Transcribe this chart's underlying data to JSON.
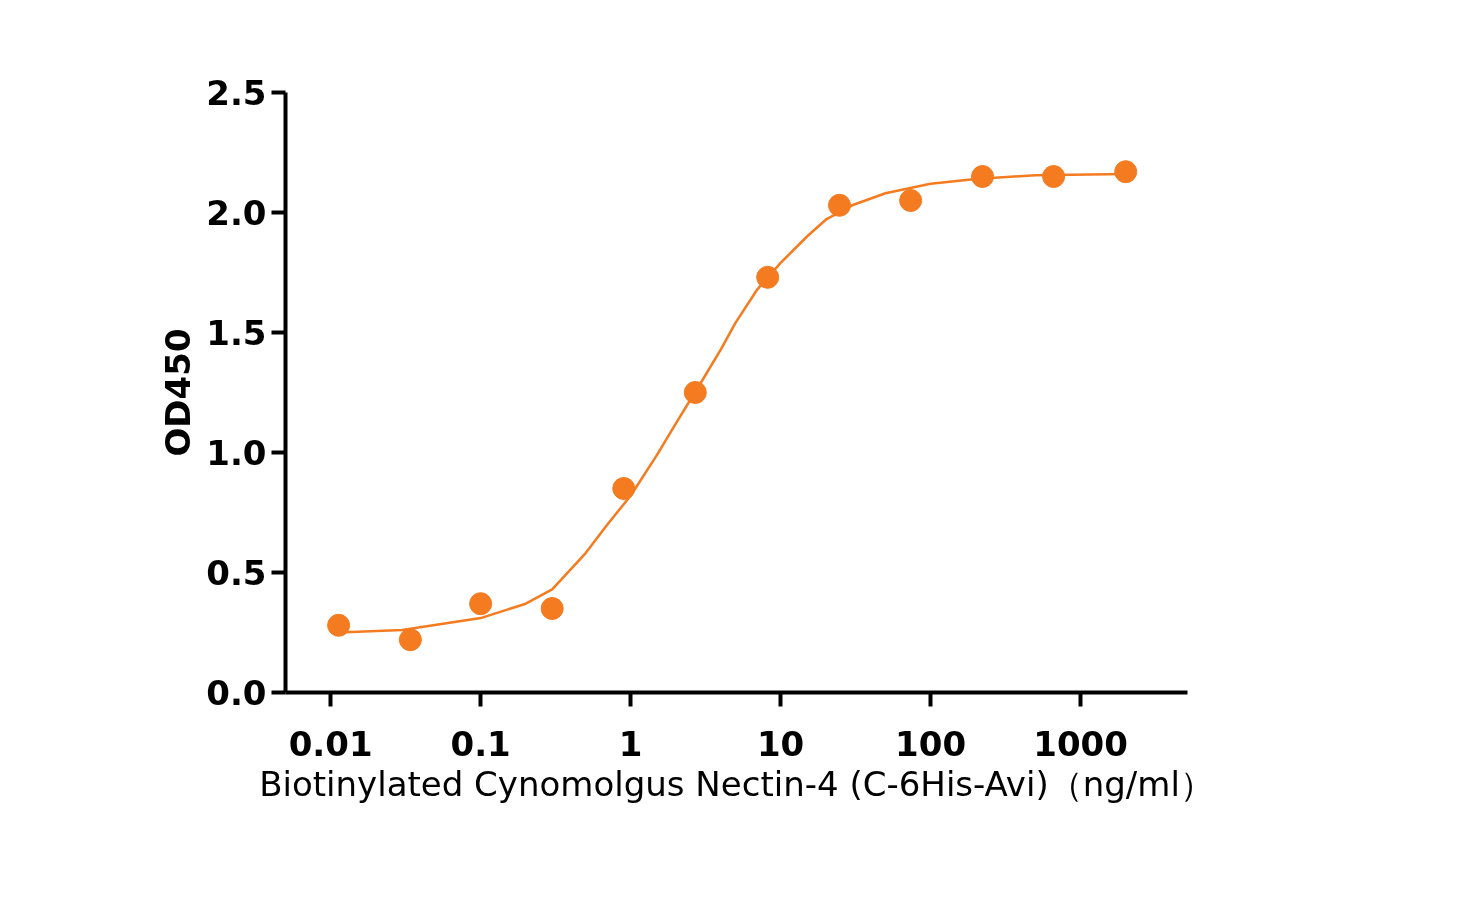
{
  "chart_data": {
    "type": "scatter",
    "xlabel": "Biotinylated Cynomolgus Nectin-4 (C-6His-Avi)（ng/ml）",
    "ylabel": "OD450",
    "log": "x",
    "xlim": [
      0.005,
      5164
    ],
    "ylim": [
      0,
      2.5
    ],
    "xticks": [
      0.01,
      0.1,
      1,
      10,
      100,
      1000
    ],
    "yticks": [
      {
        "value": 0,
        "label": "0.0"
      },
      {
        "value": 0.5,
        "label": "0.5"
      },
      {
        "value": 1,
        "label": "1.0"
      },
      {
        "value": 1.5,
        "label": "1.5"
      },
      {
        "value": 2,
        "label": "2.0"
      },
      {
        "value": 2.5,
        "label": "2.5"
      }
    ],
    "grid": false,
    "series": [
      {
        "marker": "circle",
        "color": "#f47b20",
        "x": [
          0.0113,
          0.034,
          0.1,
          0.3,
          0.9,
          2.7,
          8.2,
          24.7,
          73.6,
          222,
          661,
          2000
        ],
        "values": [
          0.28,
          0.22,
          0.37,
          0.35,
          0.85,
          1.25,
          1.73,
          2.03,
          2.05,
          2.15,
          2.15,
          2.17
        ]
      },
      {
        "type": "line",
        "marker": "none",
        "color": "#f47b20",
        "line_style": "solid",
        "x": [
          0.0113,
          0.03,
          0.1,
          0.2,
          0.3,
          0.5,
          0.7,
          1,
          1.5,
          2,
          3,
          4,
          5,
          7,
          10,
          15,
          20,
          30,
          50,
          100,
          200,
          500,
          2000
        ],
        "values": [
          0.25,
          0.26,
          0.31,
          0.37,
          0.43,
          0.58,
          0.7,
          0.82,
          0.99,
          1.12,
          1.3,
          1.43,
          1.54,
          1.68,
          1.79,
          1.9,
          1.97,
          2.03,
          2.08,
          2.12,
          2.14,
          2.155,
          2.16
        ]
      }
    ]
  }
}
